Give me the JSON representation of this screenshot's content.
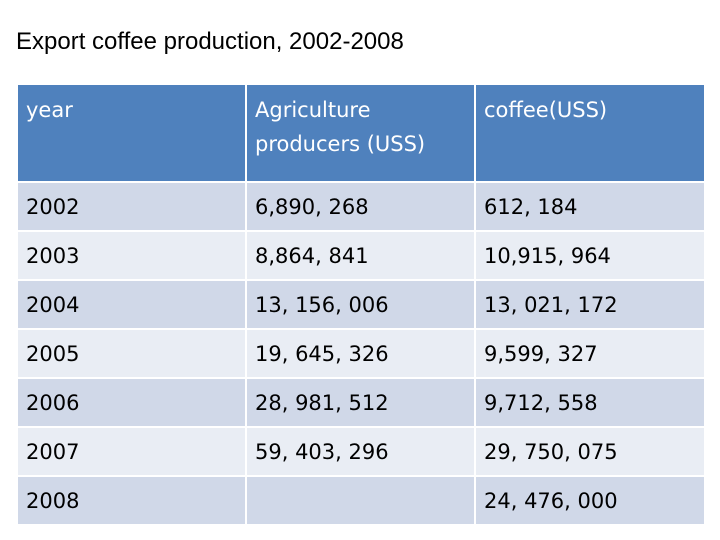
{
  "title": "Export coffee production, 2002-2008",
  "table": {
    "headers": [
      "year",
      "Agriculture producers (USS)",
      "coffee(USS)"
    ],
    "rows": [
      [
        "2002",
        "6,890, 268",
        "612, 184"
      ],
      [
        "2003",
        "8,864, 841",
        "10,915, 964"
      ],
      [
        "2004",
        "13, 156, 006",
        "13, 021, 172"
      ],
      [
        "2005",
        "19, 645, 326",
        "9,599, 327"
      ],
      [
        "2006",
        "28, 981, 512",
        "9,712, 558"
      ],
      [
        "2007",
        "59, 403, 296",
        "29, 750, 075"
      ],
      [
        "2008",
        "",
        "24, 476, 000"
      ]
    ]
  },
  "colors": {
    "header_bg": "#4f81bd",
    "header_text": "#ffffff",
    "row_band_dark": "#d0d8e8",
    "row_band_light": "#e9edf4"
  }
}
